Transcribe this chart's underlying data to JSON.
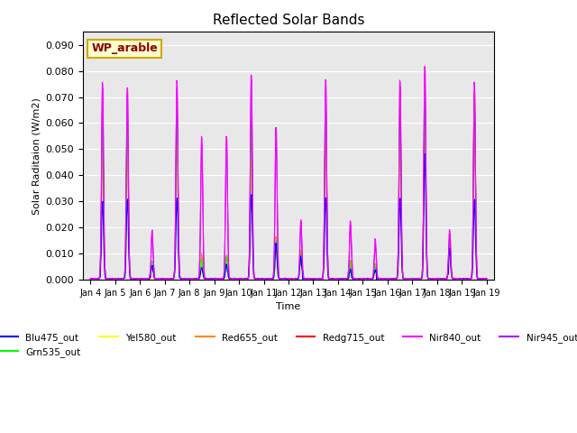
{
  "title": "Reflected Solar Bands",
  "xlabel": "Time",
  "ylabel": "Solar Raditaion (W/m2)",
  "annotation": "WP_arable",
  "ylim": [
    0,
    0.095
  ],
  "xlim": [
    0,
    360
  ],
  "series": {
    "Blu475_out": {
      "color": "#0000ff",
      "zorder": 5
    },
    "Grn535_out": {
      "color": "#00ff00",
      "zorder": 4
    },
    "Yel580_out": {
      "color": "#ffff00",
      "zorder": 3
    },
    "Red655_out": {
      "color": "#ff8800",
      "zorder": 3
    },
    "Redg715_out": {
      "color": "#ff0000",
      "zorder": 3
    },
    "Nir840_out": {
      "color": "#ff00ff",
      "zorder": 6
    },
    "Nir945_out": {
      "color": "#aa00ff",
      "zorder": 5
    }
  },
  "day_peaks": [
    {
      "day": 1,
      "blu": 0.031,
      "nir840": 0.077,
      "nir945": 0.075,
      "grn": 0.06,
      "yel": 0.058,
      "red": 0.062,
      "redg": 0.055
    },
    {
      "day": 2,
      "blu": 0.031,
      "nir840": 0.076,
      "nir945": 0.074,
      "grn": 0.06,
      "yel": 0.058,
      "red": 0.062,
      "redg": 0.055
    },
    {
      "day": 3,
      "blu": 0.005,
      "nir840": 0.019,
      "nir945": 0.018,
      "grn": 0.007,
      "yel": 0.006,
      "red": 0.007,
      "redg": 0.006
    },
    {
      "day": 4,
      "blu": 0.032,
      "nir840": 0.078,
      "nir945": 0.076,
      "grn": 0.065,
      "yel": 0.063,
      "red": 0.067,
      "redg": 0.06
    },
    {
      "day": 5,
      "blu": 0.005,
      "nir840": 0.056,
      "nir945": 0.054,
      "grn": 0.008,
      "yel": 0.007,
      "red": 0.009,
      "redg": 0.008
    },
    {
      "day": 6,
      "blu": 0.005,
      "nir840": 0.056,
      "nir945": 0.054,
      "grn": 0.008,
      "yel": 0.007,
      "red": 0.009,
      "redg": 0.008
    },
    {
      "day": 7,
      "blu": 0.034,
      "nir840": 0.081,
      "nir945": 0.079,
      "grn": 0.06,
      "yel": 0.058,
      "red": 0.062,
      "redg": 0.055
    },
    {
      "day": 8,
      "blu": 0.013,
      "nir840": 0.06,
      "nir945": 0.058,
      "grn": 0.015,
      "yel": 0.014,
      "red": 0.016,
      "redg": 0.014
    },
    {
      "day": 9,
      "blu": 0.008,
      "nir840": 0.023,
      "nir945": 0.022,
      "grn": 0.01,
      "yel": 0.009,
      "red": 0.011,
      "redg": 0.01
    },
    {
      "day": 10,
      "blu": 0.032,
      "nir840": 0.078,
      "nir945": 0.076,
      "grn": 0.065,
      "yel": 0.063,
      "red": 0.067,
      "redg": 0.06
    },
    {
      "day": 11,
      "blu": 0.003,
      "nir840": 0.022,
      "nir945": 0.021,
      "grn": 0.005,
      "yel": 0.004,
      "red": 0.006,
      "redg": 0.005
    },
    {
      "day": 12,
      "blu": 0.003,
      "nir840": 0.015,
      "nir945": 0.014,
      "grn": 0.005,
      "yel": 0.004,
      "red": 0.006,
      "redg": 0.005
    },
    {
      "day": 13,
      "blu": 0.031,
      "nir840": 0.078,
      "nir945": 0.076,
      "grn": 0.065,
      "yel": 0.063,
      "red": 0.067,
      "redg": 0.06
    },
    {
      "day": 14,
      "blu": 0.049,
      "nir840": 0.084,
      "nir945": 0.082,
      "grn": 0.07,
      "yel": 0.068,
      "red": 0.072,
      "redg": 0.065
    },
    {
      "day": 15,
      "blu": 0.011,
      "nir840": 0.019,
      "nir945": 0.018,
      "grn": 0.013,
      "yel": 0.012,
      "red": 0.014,
      "redg": 0.013
    },
    {
      "day": 16,
      "blu": 0.031,
      "nir840": 0.076,
      "nir945": 0.074,
      "grn": 0.072,
      "yel": 0.07,
      "red": 0.074,
      "redg": 0.067
    }
  ],
  "xtick_labels": [
    "Jan 4",
    "Jan 5",
    "Jan 6",
    "Jan 7",
    "Jan 8",
    "Jan 9",
    "Jan 10",
    "Jan 11",
    "Jan 12",
    "Jan 13",
    "Jan 14",
    "Jan 15",
    "Jan 16",
    "Jan 17",
    "Jan 18",
    "Jan 19"
  ],
  "ytick_values": [
    0.0,
    0.01,
    0.02,
    0.03,
    0.04,
    0.05,
    0.06,
    0.07,
    0.08,
    0.09
  ],
  "background_color": "#e8e8e8",
  "legend_loc": "lower center",
  "line_width": 0.8
}
